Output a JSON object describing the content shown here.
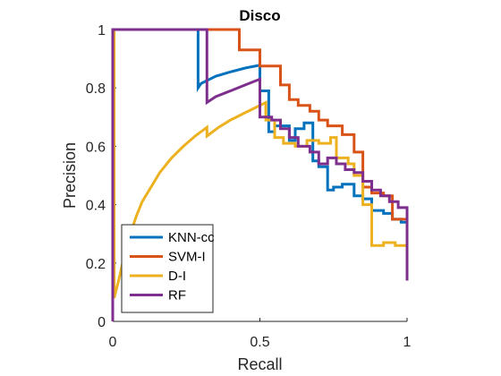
{
  "chart_data": {
    "type": "line",
    "title": "Disco",
    "xlabel": "Recall",
    "ylabel": "Precision",
    "xlim": [
      0,
      1
    ],
    "ylim": [
      0,
      1
    ],
    "xticks": [
      0,
      0.5,
      1
    ],
    "xtick_labels": [
      "0",
      "0.5",
      "1"
    ],
    "yticks": [
      0,
      0.2,
      0.4,
      0.6,
      0.8,
      1
    ],
    "ytick_labels": [
      "0",
      "0.2",
      "0.4",
      "0.6",
      "0.8",
      "1"
    ],
    "grid": false,
    "legend_position": "bottom-left",
    "series": [
      {
        "name": "KNN-cc",
        "color": "#0072BD",
        "x": [
          0,
          0,
          0.29,
          0.29,
          0.3,
          0.35,
          0.4,
          0.45,
          0.5,
          0.5,
          0.53,
          0.53,
          0.55,
          0.55,
          0.6,
          0.6,
          0.62,
          0.62,
          0.65,
          0.65,
          0.68,
          0.68,
          0.7,
          0.7,
          0.73,
          0.73,
          0.75,
          0.75,
          0.78,
          0.78,
          0.82,
          0.82,
          0.85,
          0.85,
          0.88,
          0.88,
          0.92,
          0.92,
          0.95,
          0.95,
          0.98,
          0.98,
          1,
          1
        ],
        "y": [
          0,
          1,
          1,
          0.8,
          0.815,
          0.84,
          0.855,
          0.868,
          0.878,
          0.79,
          0.79,
          0.65,
          0.65,
          0.67,
          0.67,
          0.62,
          0.62,
          0.66,
          0.66,
          0.68,
          0.68,
          0.55,
          0.55,
          0.53,
          0.53,
          0.45,
          0.45,
          0.46,
          0.46,
          0.47,
          0.47,
          0.43,
          0.43,
          0.42,
          0.42,
          0.38,
          0.38,
          0.37,
          0.37,
          0.35,
          0.35,
          0.34,
          0.34,
          0.33
        ]
      },
      {
        "name": "SVM-I",
        "color": "#D95319",
        "x": [
          0,
          0,
          0.43,
          0.43,
          0.5,
          0.5,
          0.57,
          0.57,
          0.6,
          0.6,
          0.63,
          0.63,
          0.67,
          0.67,
          0.7,
          0.7,
          0.73,
          0.73,
          0.78,
          0.78,
          0.82,
          0.82,
          0.85,
          0.85,
          0.88,
          0.88,
          0.92,
          0.92,
          0.95,
          0.95,
          1,
          1
        ],
        "y": [
          0,
          1,
          1,
          0.93,
          0.93,
          0.875,
          0.875,
          0.81,
          0.81,
          0.76,
          0.76,
          0.74,
          0.74,
          0.72,
          0.72,
          0.69,
          0.69,
          0.67,
          0.67,
          0.64,
          0.64,
          0.58,
          0.58,
          0.46,
          0.46,
          0.44,
          0.44,
          0.43,
          0.43,
          0.35,
          0.35,
          0.36
        ]
      },
      {
        "name": "D-I",
        "color": "#EDB120",
        "x": [
          0,
          0,
          0.005,
          0.005,
          0.02,
          0.04,
          0.06,
          0.08,
          0.1,
          0.13,
          0.16,
          0.2,
          0.24,
          0.28,
          0.32,
          0.32,
          0.36,
          0.4,
          0.44,
          0.48,
          0.52,
          0.52,
          0.55,
          0.55,
          0.58,
          0.58,
          0.62,
          0.62,
          0.66,
          0.66,
          0.7,
          0.7,
          0.74,
          0.74,
          0.76,
          0.76,
          0.8,
          0.8,
          0.82,
          0.82,
          0.85,
          0.85,
          0.88,
          0.88,
          0.92,
          0.92,
          0.96,
          0.96,
          1,
          1
        ],
        "y": [
          0,
          1,
          1,
          0.08,
          0.14,
          0.23,
          0.3,
          0.36,
          0.41,
          0.46,
          0.51,
          0.56,
          0.6,
          0.635,
          0.665,
          0.635,
          0.665,
          0.69,
          0.71,
          0.73,
          0.75,
          0.69,
          0.69,
          0.63,
          0.63,
          0.61,
          0.61,
          0.6,
          0.6,
          0.62,
          0.62,
          0.61,
          0.61,
          0.63,
          0.63,
          0.56,
          0.56,
          0.54,
          0.54,
          0.5,
          0.5,
          0.4,
          0.4,
          0.26,
          0.26,
          0.27,
          0.27,
          0.26,
          0.26,
          0.25
        ]
      },
      {
        "name": "RF",
        "color": "#7E2F8E",
        "x": [
          0,
          0,
          0.32,
          0.32,
          0.35,
          0.4,
          0.45,
          0.5,
          0.5,
          0.54,
          0.54,
          0.57,
          0.57,
          0.6,
          0.6,
          0.63,
          0.63,
          0.67,
          0.67,
          0.7,
          0.7,
          0.73,
          0.73,
          0.76,
          0.76,
          0.79,
          0.79,
          0.82,
          0.82,
          0.85,
          0.85,
          0.88,
          0.88,
          0.91,
          0.91,
          0.94,
          0.94,
          0.97,
          0.97,
          1,
          1
        ],
        "y": [
          0,
          1,
          1,
          0.75,
          0.77,
          0.79,
          0.81,
          0.83,
          0.7,
          0.7,
          0.69,
          0.69,
          0.66,
          0.66,
          0.63,
          0.63,
          0.6,
          0.6,
          0.58,
          0.58,
          0.54,
          0.54,
          0.56,
          0.56,
          0.54,
          0.54,
          0.52,
          0.52,
          0.51,
          0.51,
          0.48,
          0.48,
          0.45,
          0.45,
          0.43,
          0.43,
          0.41,
          0.41,
          0.39,
          0.39,
          0.14
        ]
      }
    ]
  }
}
